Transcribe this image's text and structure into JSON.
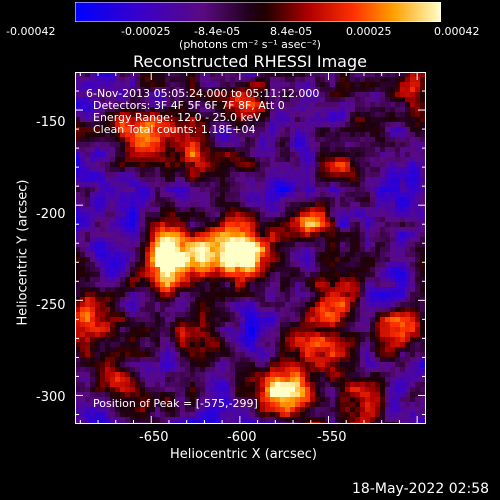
{
  "colorbar": {
    "tick_labels": [
      "-0.00042",
      "-0.00025",
      "-8.4e-05",
      "8.4e-05",
      "0.00025",
      "0.00042"
    ],
    "unit_label": "(photons cm⁻² s⁻¹ asec⁻²)",
    "range": [
      -0.00042,
      0.00042
    ]
  },
  "chart_data": {
    "type": "heatmap",
    "title": "Reconstructed RHESSI Image",
    "xlabel": "Heliocentric X (arcsec)",
    "ylabel": "Heliocentric Y (arcsec)",
    "xlim": [
      -693,
      -495
    ],
    "ylim": [
      -315,
      -130
    ],
    "x_ticks": [
      "-650",
      "-600",
      "-550"
    ],
    "y_ticks": [
      "-150",
      "-200",
      "-250",
      "-300"
    ],
    "annotations": [
      "6-Nov-2013 05:05:24.000 to 05:11:12.000",
      "Detectors: 3F 4F 5F 6F 7F 8F, Att 0",
      "Energy Range: 12.0 - 25.0 keV",
      "Clean     Total counts: 1.18E+04"
    ],
    "peak_label": "Position of Peak = [-575,-299]",
    "peak": [
      -575,
      -299
    ],
    "hotspots": [
      {
        "x": -575,
        "y": -299,
        "v": 1.0
      },
      {
        "x": -598,
        "y": -228,
        "v": 0.92
      },
      {
        "x": -640,
        "y": -228,
        "v": 0.88
      },
      {
        "x": -620,
        "y": -225,
        "v": 0.8
      },
      {
        "x": -685,
        "y": -255,
        "v": 0.75
      },
      {
        "x": -655,
        "y": -160,
        "v": 0.82
      },
      {
        "x": -625,
        "y": -172,
        "v": 0.7
      },
      {
        "x": -560,
        "y": -210,
        "v": 0.68
      },
      {
        "x": -545,
        "y": -250,
        "v": 0.72
      },
      {
        "x": -510,
        "y": -265,
        "v": 0.66
      },
      {
        "x": -590,
        "y": -150,
        "v": 0.55
      },
      {
        "x": -540,
        "y": -180,
        "v": 0.55
      },
      {
        "x": -670,
        "y": -300,
        "v": 0.58
      },
      {
        "x": -620,
        "y": -270,
        "v": 0.5
      },
      {
        "x": -530,
        "y": -300,
        "v": 0.55
      },
      {
        "x": -505,
        "y": -140,
        "v": 0.5
      },
      {
        "x": -560,
        "y": -275,
        "v": 0.58
      }
    ]
  },
  "footer": {
    "timestamp": "18-May-2022 02:58"
  }
}
